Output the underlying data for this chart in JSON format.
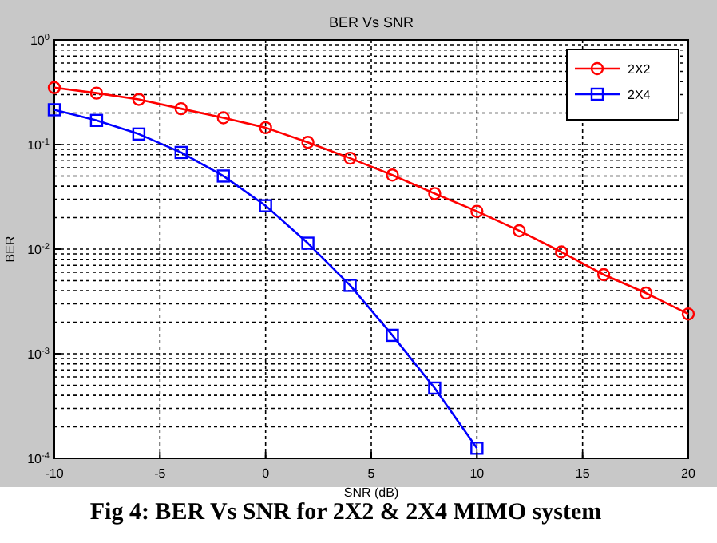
{
  "chart_data": {
    "type": "line",
    "title": "BER Vs SNR",
    "xlabel": "SNR (dB)",
    "ylabel": "BER",
    "annotations": [
      "Fig 4: BER Vs SNR for 2X2 & 2X4 MIMO system"
    ],
    "series": [
      {
        "name": "2X2",
        "color": "#ff0000",
        "marker": "circle",
        "x": [
          -10,
          -8,
          -6,
          -4,
          -2,
          0,
          2,
          4,
          6,
          8,
          10,
          12,
          14,
          16,
          18,
          20
        ],
        "values": [
          0.35,
          0.31,
          0.27,
          0.22,
          0.18,
          0.145,
          0.105,
          0.074,
          0.051,
          0.034,
          0.023,
          0.015,
          0.0094,
          0.0057,
          0.0038,
          0.0024
        ]
      },
      {
        "name": "2X4",
        "color": "#0000ff",
        "marker": "square",
        "x": [
          -10,
          -8,
          -6,
          -4,
          -2,
          0,
          2,
          4,
          6,
          8,
          10
        ],
        "values": [
          0.215,
          0.17,
          0.126,
          0.084,
          0.05,
          0.026,
          0.0114,
          0.0045,
          0.0015,
          0.00047,
          0.000125
        ]
      }
    ],
    "xlim": [
      -10,
      20
    ],
    "xticks": [
      -10,
      -5,
      0,
      5,
      10,
      15,
      20
    ],
    "ylim": [
      0.0001,
      1
    ],
    "yticks": [
      {
        "value": 0.0001,
        "label": "10$^{-4}$"
      },
      {
        "value": 0.001,
        "label": "10$^{-3}$"
      },
      {
        "value": 0.01,
        "label": "10$^{-2}$"
      },
      {
        "value": 0.1,
        "label": "10$^{-1}$"
      },
      {
        "value": 1,
        "label": "10$^{0}$"
      }
    ],
    "log": "y",
    "grid": true,
    "legend": "top right",
    "line_style": "solid"
  }
}
